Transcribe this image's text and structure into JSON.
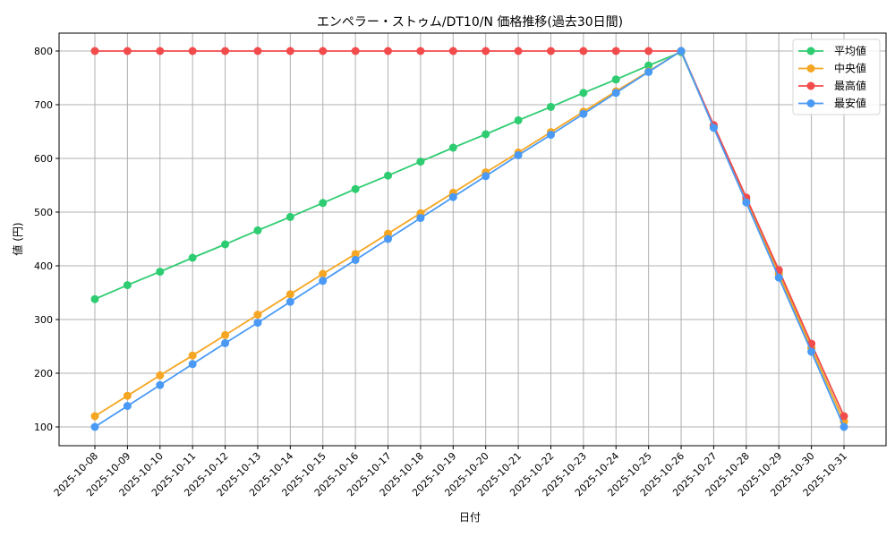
{
  "chart_data": {
    "type": "line",
    "title": "エンペラー・ストゥム/DT10/N 価格推移(過去30日間)",
    "xlabel": "日付",
    "ylabel": "値 (円)",
    "ylim": [
      65,
      835
    ],
    "yticks": [
      100,
      200,
      300,
      400,
      500,
      600,
      700,
      800
    ],
    "grid": true,
    "legend_position": "upper right",
    "categories": [
      "2025-10-08",
      "2025-10-09",
      "2025-10-10",
      "2025-10-11",
      "2025-10-12",
      "2025-10-13",
      "2025-10-14",
      "2025-10-15",
      "2025-10-16",
      "2025-10-17",
      "2025-10-18",
      "2025-10-19",
      "2025-10-20",
      "2025-10-21",
      "2025-10-22",
      "2025-10-23",
      "2025-10-24",
      "2025-10-25",
      "2025-10-26",
      "2025-10-27",
      "2025-10-28",
      "2025-10-29",
      "2025-10-30",
      "2025-10-31"
    ],
    "series": [
      {
        "name": "平均値",
        "color": "#2ecc71",
        "values": [
          338,
          364,
          389,
          415,
          440,
          466,
          491,
          517,
          543,
          568,
          594,
          620,
          645,
          671,
          696,
          722,
          747,
          773,
          798,
          659,
          522,
          385,
          247,
          110
        ]
      },
      {
        "name": "中央値",
        "color": "#f5a623",
        "values": [
          120,
          158,
          196,
          233,
          271,
          309,
          347,
          385,
          422,
          460,
          498,
          536,
          574,
          611,
          649,
          687,
          725,
          762,
          800,
          659,
          522,
          385,
          247,
          110
        ]
      },
      {
        "name": "最高値",
        "color": "#f24b4b",
        "values": [
          800,
          800,
          800,
          800,
          800,
          800,
          800,
          800,
          800,
          800,
          800,
          800,
          800,
          800,
          800,
          800,
          800,
          800,
          800,
          662,
          527,
          392,
          255,
          120
        ]
      },
      {
        "name": "最安値",
        "color": "#4a9af5",
        "values": [
          100,
          139,
          178,
          217,
          256,
          294,
          333,
          372,
          411,
          450,
          489,
          528,
          567,
          606,
          644,
          683,
          722,
          761,
          800,
          657,
          518,
          378,
          240,
          100
        ]
      }
    ]
  }
}
